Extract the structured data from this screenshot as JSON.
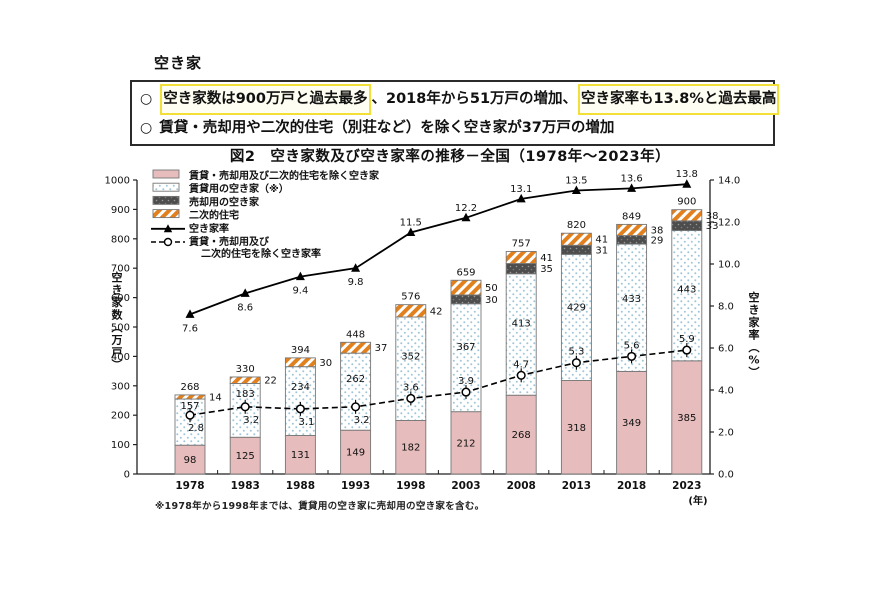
{
  "summary": {
    "heading": "空き家",
    "bullets": [
      {
        "marker": "○",
        "parts": [
          {
            "text": "空き家数は900万戸と過去最多",
            "highlight": true
          },
          {
            "text": "、2018年から51万戸の増加、",
            "highlight": false
          },
          {
            "text": "空き家率も13.8%と過去最高",
            "highlight": true
          }
        ]
      },
      {
        "marker": "○",
        "parts": [
          {
            "text": "賃貸・売却用や二次的住宅（別荘など）を除く空き家が37万戸の増加",
            "highlight": false
          }
        ]
      }
    ]
  },
  "figure_caption": "図2　空き家数及び空き家率の推移－全国（1978年～2023年）",
  "footnote": "※1978年から1998年までは、賃貸用の空き家に売却用の空き家を含む。",
  "colors": {
    "pink": "#e6bcbc",
    "dot": "#9fc6d8",
    "dark": "#4d4d4d",
    "dark_dot": "#999999",
    "orange": "#e2801e",
    "bar_border": "#777777",
    "axis": "#222222",
    "line": "#000000",
    "highlight_border": "#f2df38"
  },
  "legend": [
    {
      "swatch": "pink",
      "label": "賃貸・売却用及び二次的住宅を除く空き家"
    },
    {
      "swatch": "dots",
      "label": "賃貸用の空き家（※）"
    },
    {
      "swatch": "dark",
      "label": "売却用の空き家"
    },
    {
      "swatch": "hatch",
      "label": "二次的住宅"
    },
    {
      "swatch": "rate-line",
      "label": "空き家率"
    },
    {
      "swatch": "excl-rate-line",
      "label": "賃貸・売却用及び\n二次的住宅を除く空き家率"
    }
  ],
  "chart_data": {
    "type": "bar",
    "categories": [
      "1978",
      "1983",
      "1988",
      "1993",
      "1998",
      "2003",
      "2008",
      "2013",
      "2018",
      "2023"
    ],
    "series": [
      {
        "name": "賃貸・売却用及び二次的住宅を除く空き家",
        "values": [
          98,
          125,
          131,
          149,
          182,
          212,
          268,
          318,
          349,
          385
        ]
      },
      {
        "name": "賃貸用の空き家（※）",
        "values": [
          157,
          183,
          234,
          262,
          352,
          367,
          413,
          429,
          433,
          443
        ]
      },
      {
        "name": "売却用の空き家",
        "values": [
          null,
          null,
          null,
          null,
          null,
          30,
          35,
          31,
          29,
          33
        ]
      },
      {
        "name": "二次的住宅",
        "values": [
          14,
          22,
          30,
          37,
          42,
          50,
          41,
          41,
          38,
          38
        ]
      }
    ],
    "totals": [
      268,
      330,
      394,
      448,
      576,
      659,
      757,
      820,
      849,
      900
    ],
    "line_series": [
      {
        "name": "空き家率",
        "values": [
          7.6,
          8.6,
          9.4,
          9.8,
          11.5,
          12.2,
          13.1,
          13.5,
          13.6,
          13.8
        ]
      },
      {
        "name": "賃貸・売却用及び二次的住宅を除く空き家率",
        "values": [
          2.8,
          3.2,
          3.1,
          3.2,
          3.6,
          3.9,
          4.7,
          5.3,
          5.6,
          5.9
        ]
      }
    ],
    "left_axis": {
      "label": "空き家数（万戸）",
      "min": 0,
      "max": 1000,
      "step": 100
    },
    "right_axis": {
      "label": "空き家率（%）",
      "min": 0,
      "max": 14,
      "step": 2
    },
    "x_unit": "(年)",
    "grid": false,
    "legend_position": "top-left-inside"
  }
}
